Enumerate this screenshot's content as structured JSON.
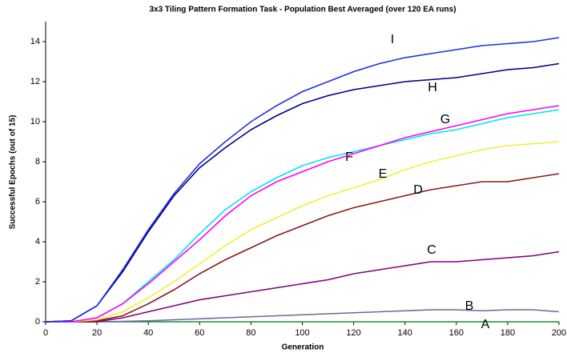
{
  "chart_data": {
    "type": "line",
    "title": "3x3 Tiling Pattern Formation Task - Population Best Averaged (over 120 EA runs)",
    "x_label": "Generation",
    "y_label": "Successful Epochs  (out of 15)",
    "x": [
      0,
      10,
      20,
      30,
      40,
      50,
      60,
      70,
      80,
      90,
      100,
      110,
      120,
      130,
      140,
      150,
      160,
      170,
      180,
      190,
      200
    ],
    "xlim": [
      0,
      200
    ],
    "xticks": [
      0,
      20,
      40,
      60,
      80,
      100,
      120,
      140,
      160,
      180,
      200
    ],
    "ylim": [
      0,
      15
    ],
    "yticks": [
      0,
      2,
      4,
      6,
      8,
      10,
      12,
      14
    ],
    "series": [
      {
        "name": "A",
        "color": "#1a8a3a",
        "values": [
          0,
          0,
          0,
          0,
          0,
          0,
          0,
          0,
          0,
          0,
          0,
          0,
          0,
          0,
          0,
          0,
          0,
          0,
          0,
          0,
          0
        ]
      },
      {
        "name": "B",
        "color": "#6a6a9a",
        "values": [
          0,
          0,
          0,
          0.02,
          0.05,
          0.1,
          0.15,
          0.2,
          0.25,
          0.3,
          0.35,
          0.4,
          0.45,
          0.5,
          0.55,
          0.6,
          0.6,
          0.55,
          0.6,
          0.6,
          0.5
        ]
      },
      {
        "name": "C",
        "color": "#800080",
        "values": [
          0,
          0,
          0,
          0.2,
          0.5,
          0.8,
          1.1,
          1.3,
          1.5,
          1.7,
          1.9,
          2.1,
          2.4,
          2.6,
          2.8,
          3.0,
          3.0,
          3.1,
          3.2,
          3.3,
          3.5
        ]
      },
      {
        "name": "D",
        "color": "#8b1a1a",
        "values": [
          0,
          0,
          0.05,
          0.3,
          0.9,
          1.6,
          2.4,
          3.1,
          3.7,
          4.3,
          4.8,
          5.3,
          5.7,
          6.0,
          6.3,
          6.6,
          6.8,
          7.0,
          7.0,
          7.2,
          7.4
        ]
      },
      {
        "name": "E",
        "color": "#f2ee3a",
        "values": [
          0,
          0,
          0.1,
          0.5,
          1.2,
          2.0,
          2.9,
          3.8,
          4.6,
          5.2,
          5.8,
          6.3,
          6.7,
          7.1,
          7.6,
          8.0,
          8.3,
          8.6,
          8.8,
          8.9,
          9.0
        ]
      },
      {
        "name": "F",
        "color": "#00e5ee",
        "values": [
          0,
          0,
          0.2,
          0.9,
          2.0,
          3.1,
          4.4,
          5.6,
          6.5,
          7.2,
          7.8,
          8.2,
          8.5,
          8.8,
          9.1,
          9.4,
          9.6,
          9.9,
          10.2,
          10.4,
          10.6
        ]
      },
      {
        "name": "G",
        "color": "#ff00ff",
        "values": [
          0,
          0,
          0.2,
          0.9,
          1.9,
          3.0,
          4.1,
          5.3,
          6.3,
          7.0,
          7.5,
          8.0,
          8.4,
          8.8,
          9.2,
          9.5,
          9.8,
          10.1,
          10.4,
          10.6,
          10.8
        ]
      },
      {
        "name": "H",
        "color": "#000080",
        "values": [
          0,
          0.05,
          0.8,
          2.5,
          4.5,
          6.3,
          7.7,
          8.7,
          9.6,
          10.3,
          10.9,
          11.3,
          11.6,
          11.8,
          12.0,
          12.1,
          12.2,
          12.4,
          12.6,
          12.7,
          12.9
        ]
      },
      {
        "name": "I",
        "color": "#1f2fe0",
        "values": [
          0,
          0.05,
          0.8,
          2.6,
          4.6,
          6.4,
          7.9,
          9.0,
          10.0,
          10.8,
          11.5,
          12.0,
          12.5,
          12.9,
          13.2,
          13.4,
          13.6,
          13.8,
          13.9,
          14.0,
          14.2
        ]
      }
    ]
  }
}
